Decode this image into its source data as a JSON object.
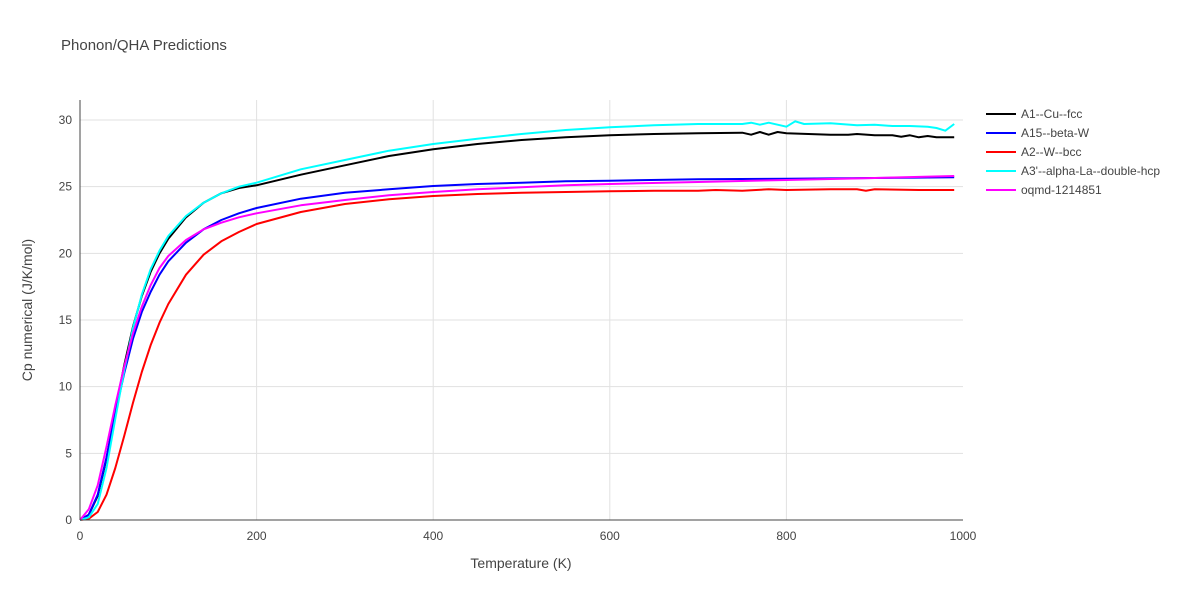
{
  "chart_data": {
    "type": "line",
    "title": "Phonon/QHA Predictions",
    "xlabel": "Temperature (K)",
    "ylabel": "Cp numerical (J/K/mol)",
    "xlim": [
      0,
      1000
    ],
    "ylim": [
      0,
      31.5
    ],
    "xticks": [
      0,
      200,
      400,
      600,
      800,
      1000
    ],
    "yticks": [
      0,
      5,
      10,
      15,
      20,
      25,
      30
    ],
    "grid": true,
    "legend_position": "top-right",
    "series": [
      {
        "name": "A1--Cu--fcc",
        "color": "#000000",
        "x": [
          0,
          10,
          20,
          30,
          40,
          50,
          60,
          70,
          80,
          90,
          100,
          120,
          140,
          160,
          180,
          200,
          250,
          300,
          350,
          400,
          450,
          500,
          550,
          600,
          650,
          700,
          750,
          760,
          770,
          780,
          790,
          800,
          850,
          870,
          880,
          900,
          920,
          930,
          940,
          950,
          960,
          970,
          990
        ],
        "y": [
          0,
          0.4,
          1.8,
          4.6,
          8.2,
          11.6,
          14.5,
          16.8,
          18.6,
          20.0,
          21.1,
          22.7,
          23.8,
          24.5,
          24.9,
          25.1,
          25.9,
          26.6,
          27.3,
          27.8,
          28.2,
          28.5,
          28.7,
          28.85,
          28.95,
          29.0,
          29.05,
          28.9,
          29.1,
          28.9,
          29.1,
          29.0,
          28.9,
          28.9,
          28.95,
          28.85,
          28.85,
          28.75,
          28.85,
          28.7,
          28.8,
          28.7,
          28.7
        ]
      },
      {
        "name": "A15--beta-W",
        "color": "#0000ff",
        "x": [
          0,
          10,
          20,
          30,
          40,
          50,
          60,
          70,
          80,
          90,
          100,
          120,
          140,
          160,
          180,
          200,
          250,
          300,
          350,
          400,
          450,
          500,
          550,
          600,
          700,
          800,
          900,
          990
        ],
        "y": [
          0,
          0.4,
          1.9,
          4.7,
          8.0,
          11.0,
          13.6,
          15.6,
          17.1,
          18.4,
          19.4,
          20.8,
          21.8,
          22.5,
          23.0,
          23.4,
          24.1,
          24.55,
          24.8,
          25.05,
          25.2,
          25.3,
          25.4,
          25.45,
          25.55,
          25.6,
          25.65,
          25.7
        ]
      },
      {
        "name": "A2--W--bcc",
        "color": "#ff0000",
        "x": [
          0,
          10,
          20,
          30,
          40,
          50,
          60,
          70,
          80,
          90,
          100,
          120,
          140,
          160,
          180,
          200,
          250,
          300,
          350,
          400,
          450,
          500,
          550,
          600,
          650,
          700,
          720,
          750,
          780,
          800,
          850,
          880,
          890,
          900,
          950,
          990
        ],
        "y": [
          0,
          0.1,
          0.6,
          1.9,
          3.9,
          6.3,
          8.8,
          11.1,
          13.1,
          14.8,
          16.2,
          18.4,
          19.9,
          20.9,
          21.6,
          22.2,
          23.1,
          23.7,
          24.05,
          24.3,
          24.45,
          24.55,
          24.6,
          24.65,
          24.7,
          24.7,
          24.75,
          24.7,
          24.8,
          24.75,
          24.8,
          24.8,
          24.7,
          24.8,
          24.75,
          24.75
        ]
      },
      {
        "name": "A3'--alpha-La--double-hcp",
        "color": "#00ffff",
        "x": [
          0,
          10,
          20,
          30,
          40,
          50,
          60,
          70,
          80,
          90,
          100,
          120,
          140,
          160,
          180,
          200,
          250,
          300,
          350,
          400,
          450,
          500,
          550,
          600,
          650,
          700,
          750,
          760,
          770,
          780,
          790,
          800,
          810,
          820,
          850,
          880,
          900,
          920,
          940,
          960,
          970,
          980,
          990
        ],
        "y": [
          0,
          0.2,
          1.2,
          3.9,
          7.6,
          11.2,
          14.4,
          16.9,
          18.8,
          20.2,
          21.3,
          22.8,
          23.8,
          24.5,
          25.0,
          25.3,
          26.3,
          27.0,
          27.7,
          28.2,
          28.6,
          28.95,
          29.25,
          29.45,
          29.6,
          29.7,
          29.7,
          29.8,
          29.65,
          29.8,
          29.65,
          29.5,
          29.9,
          29.7,
          29.75,
          29.6,
          29.65,
          29.55,
          29.55,
          29.5,
          29.4,
          29.2,
          29.7
        ]
      },
      {
        "name": "oqmd-1214851",
        "color": "#ff00ff",
        "x": [
          0,
          10,
          20,
          30,
          40,
          50,
          60,
          70,
          80,
          90,
          100,
          120,
          140,
          160,
          180,
          200,
          250,
          300,
          350,
          400,
          450,
          500,
          550,
          600,
          700,
          800,
          900,
          990
        ],
        "y": [
          0,
          0.8,
          2.6,
          5.5,
          8.6,
          11.5,
          14.0,
          16.0,
          17.6,
          18.9,
          19.8,
          21.0,
          21.8,
          22.3,
          22.7,
          23.0,
          23.6,
          24.0,
          24.35,
          24.6,
          24.8,
          24.95,
          25.1,
          25.2,
          25.35,
          25.5,
          25.65,
          25.8
        ]
      }
    ]
  }
}
